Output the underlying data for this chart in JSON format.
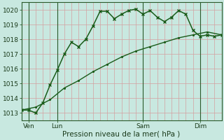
{
  "xlabel": "Pression niveau de la mer( hPa )",
  "bg_color": "#c8e8e0",
  "grid_color_major": "#e8b8b8",
  "grid_color_minor": "#e8b8b8",
  "line_color": "#1a5c1a",
  "ylim": [
    1012.5,
    1020.5
  ],
  "xlim": [
    0,
    28
  ],
  "series1_x": [
    0,
    1,
    2,
    3,
    4,
    5,
    6,
    7,
    8,
    9,
    10,
    11,
    12,
    13,
    14,
    15,
    16,
    17,
    18,
    19,
    20,
    21,
    22,
    23,
    24,
    25,
    26,
    27,
    28
  ],
  "series1_y": [
    1013.2,
    1013.2,
    1013.0,
    1013.7,
    1014.9,
    1015.9,
    1017.0,
    1017.8,
    1017.5,
    1018.0,
    1018.9,
    1019.9,
    1019.9,
    1019.4,
    1019.7,
    1019.95,
    1020.05,
    1019.7,
    1019.95,
    1019.5,
    1019.2,
    1019.5,
    1019.95,
    1019.7,
    1018.6,
    1018.2,
    1018.3,
    1018.2,
    1018.3
  ],
  "series2_x": [
    0,
    2,
    4,
    6,
    8,
    10,
    12,
    14,
    16,
    18,
    20,
    22,
    24,
    26,
    28
  ],
  "series2_y": [
    1013.2,
    1013.4,
    1013.9,
    1014.7,
    1015.2,
    1015.8,
    1016.3,
    1016.8,
    1017.2,
    1017.5,
    1017.8,
    1018.1,
    1018.3,
    1018.5,
    1018.3
  ],
  "xtick_positions": [
    1,
    5,
    17,
    25
  ],
  "xtick_labels": [
    "Ven",
    "Lun",
    "Sam",
    "Dim"
  ],
  "vline_positions": [
    1,
    5,
    17,
    25
  ],
  "ytick_values": [
    1013,
    1014,
    1015,
    1016,
    1017,
    1018,
    1019,
    1020
  ],
  "axis_color": "#2a5a2a",
  "tick_color": "#2a5a2a",
  "label_color": "#1a3a1a",
  "fontsize_tick": 6.5,
  "fontsize_xlabel": 7.5
}
